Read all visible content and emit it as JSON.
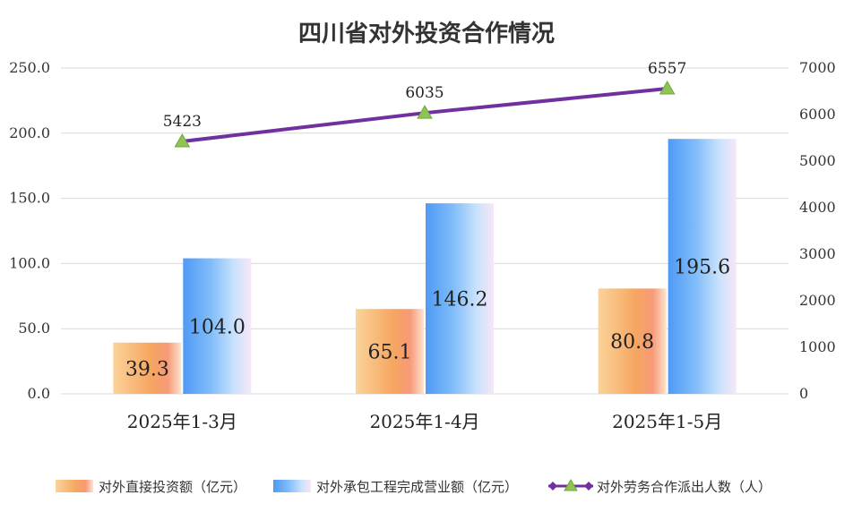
{
  "chart_data": {
    "type": "bar",
    "title": "四川省对外投资合作情况",
    "categories": [
      "2025年1-3月",
      "2025年1-4月",
      "2025年1-5月"
    ],
    "series": [
      {
        "name": "对外直接投资额（亿元）",
        "axis": "left",
        "kind": "bar",
        "values": [
          39.3,
          65.1,
          80.8
        ],
        "labels": [
          "39.3",
          "65.1",
          "80.8"
        ]
      },
      {
        "name": "对外承包工程完成营业额（亿元）",
        "axis": "left",
        "kind": "bar",
        "values": [
          104.0,
          146.2,
          195.6
        ],
        "labels": [
          "104.0",
          "146.2",
          "195.6"
        ]
      },
      {
        "name": "对外劳务合作派出人数（人）",
        "axis": "right",
        "kind": "line",
        "values": [
          5423,
          6035,
          6557
        ],
        "labels": [
          "5423",
          "6035",
          "6557"
        ]
      }
    ],
    "y_left": {
      "min": 0,
      "max": 250,
      "ticks": [
        "0.0",
        "50.0",
        "100.0",
        "150.0",
        "200.0",
        "250.0"
      ]
    },
    "y_right": {
      "min": 0,
      "max": 7000,
      "ticks": [
        "0",
        "1000",
        "2000",
        "3000",
        "4000",
        "5000",
        "6000",
        "7000"
      ]
    },
    "grid": true,
    "legend_position": "bottom",
    "colors": {
      "bar1": "#f5a35e",
      "bar2": "#5aa6f7",
      "line": "#7030a0",
      "marker": "#8fc454"
    }
  }
}
